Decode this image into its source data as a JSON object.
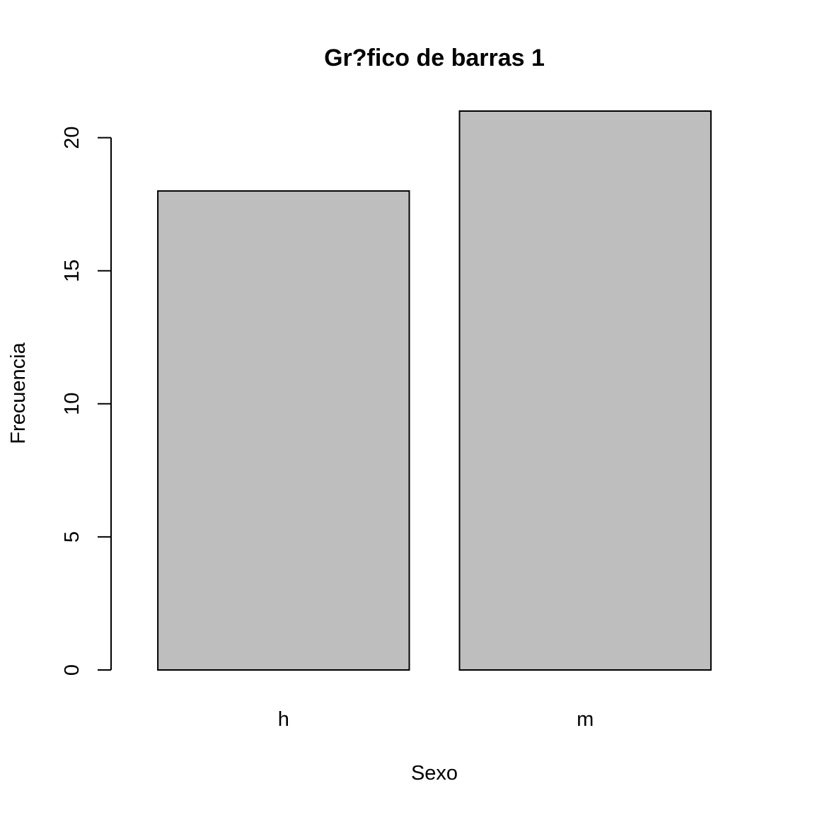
{
  "chart_data": {
    "type": "bar",
    "title": "Gr?fico de barras 1",
    "xlabel": "Sexo",
    "ylabel": "Frecuencia",
    "categories": [
      "h",
      "m"
    ],
    "values": [
      18,
      21
    ],
    "ylim": [
      0,
      21
    ],
    "yticks": [
      "0",
      "5",
      "10",
      "15",
      "20"
    ],
    "bar_fill": "#bebebe",
    "bar_stroke": "#000000",
    "grid": false,
    "legend": "none"
  }
}
